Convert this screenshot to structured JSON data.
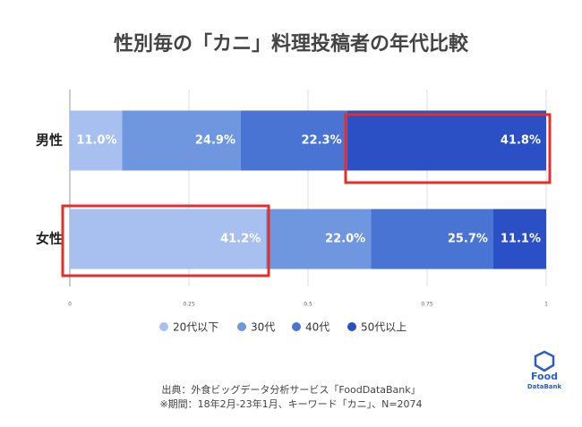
{
  "chart_data": {
    "type": "stacked_barh",
    "title": "性別毎の「カニ」料理投稿者の年代比較",
    "categories": [
      "男性",
      "女性"
    ],
    "series": [
      {
        "name": "20代以下",
        "color": "#a8c0ef",
        "values": [
          0.11,
          0.412
        ],
        "value_labels": [
          "11.0%",
          "41.2%"
        ]
      },
      {
        "name": "30代",
        "color": "#6e97e0",
        "values": [
          0.249,
          0.22
        ],
        "value_labels": [
          "24.9%",
          "22.0%"
        ]
      },
      {
        "name": "40代",
        "color": "#4a74d4",
        "values": [
          0.223,
          0.257
        ],
        "value_labels": [
          "22.3%",
          "25.7%"
        ]
      },
      {
        "name": "50代以上",
        "color": "#2b4fc4",
        "values": [
          0.418,
          0.111
        ],
        "value_labels": [
          "41.8%",
          "11.1%"
        ]
      }
    ],
    "xlim": [
      0,
      1
    ],
    "xticks": [
      0,
      0.25,
      0.5,
      0.75,
      1
    ],
    "grid": true,
    "legend": "bottom",
    "source": [
      "出典：外食ビッグデータ分析サービス「FoodDataBank」",
      "※期間：18年2月-23年1月、キーワード「カニ」、N=2074"
    ]
  },
  "logo": {
    "line1": "Food",
    "line2": "DataBank"
  }
}
